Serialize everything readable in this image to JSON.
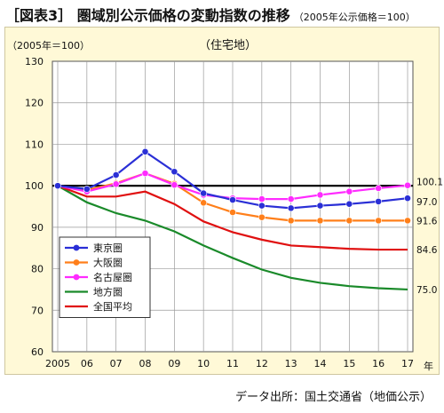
{
  "title": {
    "main": "［図表3］ 圏域別公示価格の変動指数の推移",
    "sub": "（2005年公示価格＝100）"
  },
  "source": "データ出所：国土交通省（地価公示）",
  "chart_data": {
    "type": "line",
    "title": "（住宅地）",
    "unit_label": "（2005年＝100）",
    "x_unit": "年",
    "categories": [
      "2005",
      "06",
      "07",
      "08",
      "09",
      "10",
      "11",
      "12",
      "13",
      "14",
      "15",
      "16",
      "17"
    ],
    "ylim": [
      60,
      130
    ],
    "yticks": [
      60,
      70,
      80,
      90,
      100,
      110,
      120,
      130
    ],
    "grid": true,
    "baseline": 100,
    "legend_position": "bottom-left",
    "series": [
      {
        "name": "東京圏",
        "color": "#2a2fd6",
        "marker": true,
        "values": [
          100,
          99.2,
          102.6,
          108.2,
          103.4,
          98.2,
          96.6,
          95.2,
          94.6,
          95.2,
          95.6,
          96.2,
          97.0
        ],
        "end_label": "97.0"
      },
      {
        "name": "大阪圏",
        "color": "#ff7f1a",
        "marker": true,
        "values": [
          100,
          99.0,
          100.6,
          103.0,
          100.5,
          95.9,
          93.6,
          92.4,
          91.6,
          91.6,
          91.6,
          91.6,
          91.6
        ],
        "end_label": "91.6"
      },
      {
        "name": "名古屋圏",
        "color": "#ff2bff",
        "marker": true,
        "values": [
          100,
          98.6,
          100.4,
          103.0,
          100.2,
          97.8,
          97.0,
          96.8,
          96.8,
          97.8,
          98.6,
          99.4,
          100.1
        ],
        "end_label": "100.1"
      },
      {
        "name": "地方圏",
        "color": "#1a8a2a",
        "marker": false,
        "values": [
          100,
          96.0,
          93.4,
          91.6,
          89.0,
          85.6,
          82.6,
          79.8,
          77.8,
          76.6,
          75.8,
          75.3,
          75.0
        ],
        "end_label": "75.0"
      },
      {
        "name": "全国平均",
        "color": "#e01010",
        "marker": false,
        "values": [
          100,
          97.4,
          97.4,
          98.6,
          95.6,
          91.4,
          88.8,
          87.0,
          85.6,
          85.2,
          84.8,
          84.6,
          84.6
        ],
        "end_label": "84.6"
      }
    ]
  }
}
